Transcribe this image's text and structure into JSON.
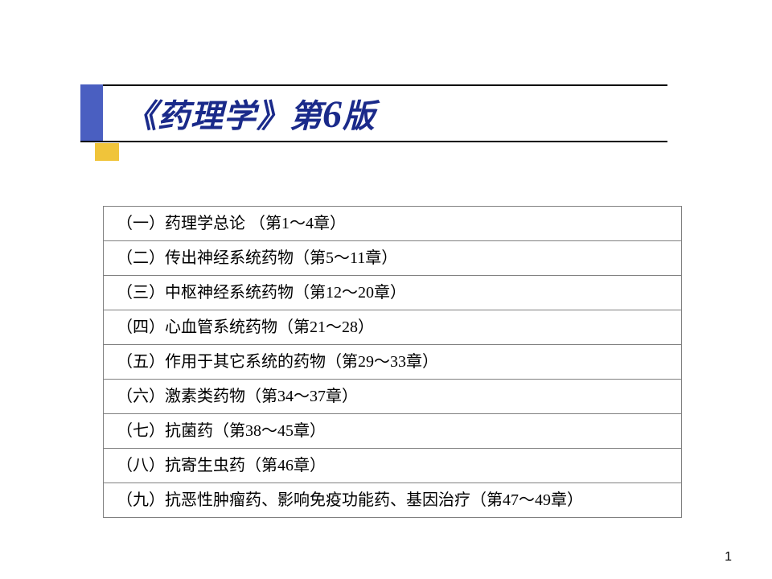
{
  "title": "《药理学》第6版",
  "colors": {
    "title_text": "#1a2a8a",
    "accent_blue": "#4a5fc1",
    "accent_yellow": "#f0c43a",
    "line": "#000000",
    "border": "#808080",
    "background": "#ffffff"
  },
  "typography": {
    "title_fontsize": 40,
    "title_big_digit_fontsize": 48,
    "row_fontsize": 20,
    "title_style": "italic bold",
    "row_family": "KaiTi"
  },
  "rows": [
    "（一）药理学总论 （第1～4章）",
    "（二）传出神经系统药物（第5～11章）",
    "（三）中枢神经系统药物（第12～20章）",
    "（四）心血管系统药物（第21～28）",
    "（五）作用于其它系统的药物（第29～33章）",
    "（六）激素类药物（第34～37章）",
    "（七）抗菌药（第38～45章）",
    "（八）抗寄生虫药（第46章）",
    "（九）抗恶性肿瘤药、影响免疫功能药、基因治疗（第47～49章）"
  ],
  "page_number": "1"
}
